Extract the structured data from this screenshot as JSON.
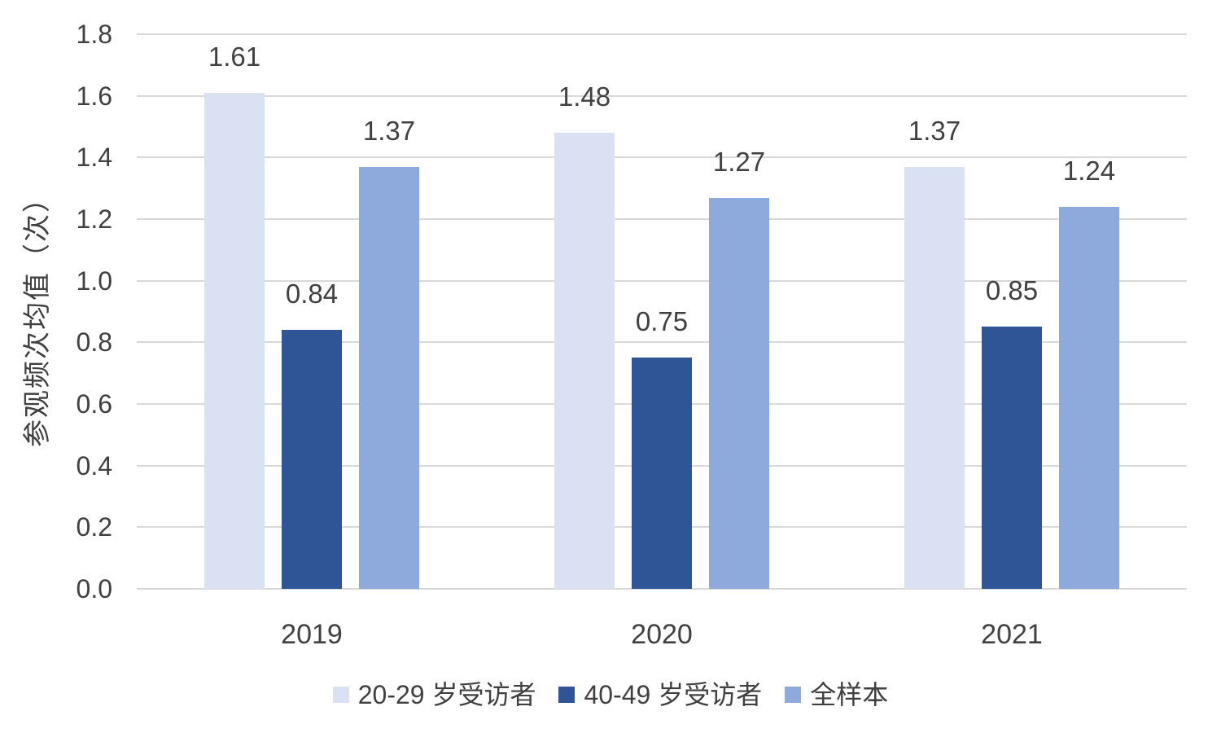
{
  "chart_data": {
    "type": "bar",
    "title": "",
    "categories": [
      "2019",
      "2020",
      "2021"
    ],
    "series": [
      {
        "name": "20-29 岁受访者",
        "color": "#D9E1F2",
        "values": [
          1.61,
          1.48,
          1.37
        ],
        "labels": [
          "1.61",
          "1.48",
          "1.37"
        ]
      },
      {
        "name": "40-49 岁受访者",
        "color": "#2F5597",
        "values": [
          0.84,
          0.75,
          0.85
        ],
        "labels": [
          "0.84",
          "0.75",
          "0.85"
        ]
      },
      {
        "name": "全样本",
        "color": "#8EA9DB",
        "values": [
          1.37,
          1.27,
          1.24
        ],
        "labels": [
          "1.37",
          "1.27",
          "1.24"
        ]
      }
    ],
    "xlabel": "",
    "ylabel": "参观频次均值（次）",
    "ylim": [
      0,
      1.8
    ],
    "ytick_values": [
      0.0,
      0.2,
      0.4,
      0.6,
      0.8,
      1.0,
      1.2,
      1.4,
      1.6,
      1.8
    ],
    "ytick_labels": [
      "0.0",
      "0.2",
      "0.4",
      "0.6",
      "0.8",
      "1.0",
      "1.2",
      "1.4",
      "1.6",
      "1.8"
    ],
    "grid": true,
    "legend_position": "bottom"
  },
  "style": {
    "grid_color": "#D9D9D9",
    "text_color": "#404040",
    "background": "#FFFFFF"
  }
}
